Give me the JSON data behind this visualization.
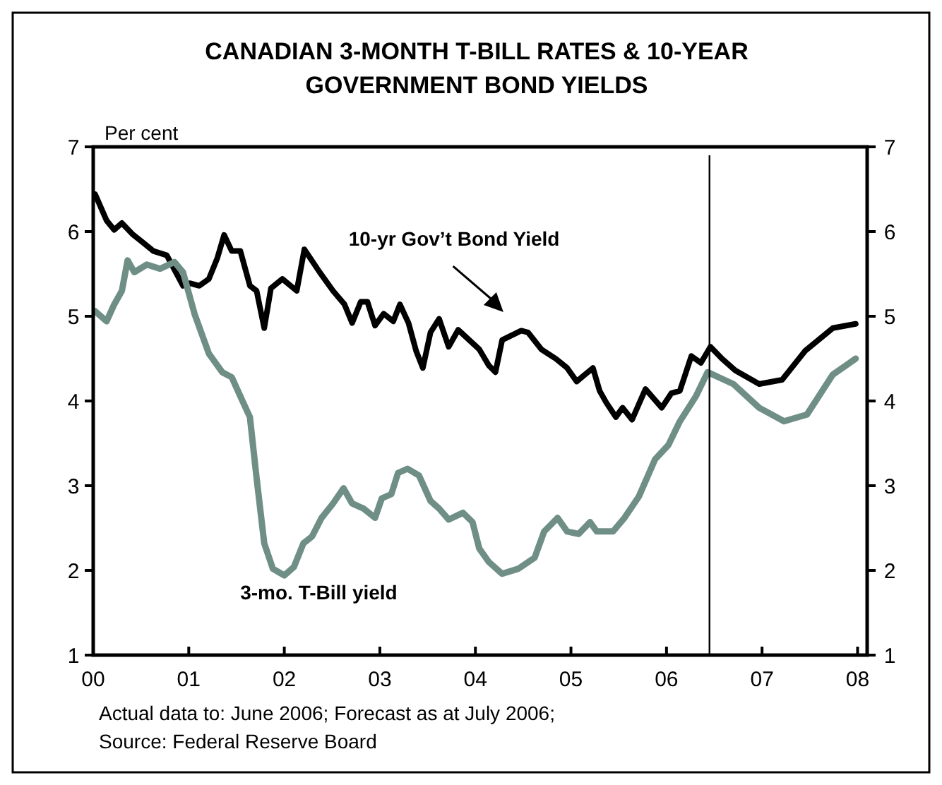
{
  "chart_data": {
    "type": "line",
    "title": "CANADIAN 3-MONTH T-BILL RATES & 10-YEAR GOVERNMENT BOND YIELDS",
    "ylabel": "Per cent",
    "xlim": [
      2000,
      2008.1
    ],
    "xticks": [
      {
        "value": 2000,
        "label": "00"
      },
      {
        "value": 2001,
        "label": "01"
      },
      {
        "value": 2002,
        "label": "02"
      },
      {
        "value": 2003,
        "label": "03"
      },
      {
        "value": 2004,
        "label": "04"
      },
      {
        "value": 2005,
        "label": "05"
      },
      {
        "value": 2006,
        "label": "06"
      },
      {
        "value": 2007,
        "label": "07"
      },
      {
        "value": 2008,
        "label": "08"
      }
    ],
    "ylim": [
      1,
      7
    ],
    "yticks": [
      1,
      2,
      3,
      4,
      5,
      6,
      7
    ],
    "y2lim": [
      1,
      7
    ],
    "y2ticks": [
      1,
      2,
      3,
      4,
      5,
      6,
      7
    ],
    "grid": false,
    "legend": false,
    "marker": "none",
    "line_style": "solid",
    "ref_lines": [
      {
        "axis": "x",
        "value": 2006.45,
        "color": "#000000"
      }
    ],
    "annotations": [
      "Actual data to: June 2006; Forecast as at July 2006;",
      "Source: Federal Reserve Board"
    ],
    "series": [
      {
        "name": "10-yr Gov’t Bond Yield",
        "color": "#000000",
        "x": [
          2000.02,
          2000.14,
          2000.22,
          2000.3,
          2000.41,
          2000.51,
          2000.63,
          2000.77,
          2000.94,
          2001.01,
          2001.11,
          2001.21,
          2001.3,
          2001.37,
          2001.45,
          2001.54,
          2001.64,
          2001.71,
          2001.79,
          2001.86,
          2001.98,
          2002.13,
          2002.21,
          2002.37,
          2002.51,
          2002.63,
          2002.71,
          2002.8,
          2002.87,
          2002.95,
          2003.04,
          2003.14,
          2003.21,
          2003.3,
          2003.38,
          2003.45,
          2003.53,
          2003.62,
          2003.72,
          2003.82,
          2004.04,
          2004.14,
          2004.21,
          2004.28,
          2004.48,
          2004.55,
          2004.69,
          2004.84,
          2004.96,
          2005.06,
          2005.23,
          2005.3,
          2005.37,
          2005.47,
          2005.54,
          2005.64,
          2005.78,
          2005.95,
          2006.05,
          2006.14,
          2006.26,
          2006.36,
          2006.46,
          2006.58,
          2006.72,
          2006.97,
          2007.21,
          2007.45,
          2007.74,
          2007.98
        ],
        "values": [
          6.44,
          6.13,
          6.02,
          6.1,
          5.97,
          5.88,
          5.77,
          5.72,
          5.36,
          5.39,
          5.36,
          5.44,
          5.69,
          5.96,
          5.77,
          5.77,
          5.36,
          5.3,
          4.86,
          5.33,
          5.44,
          5.3,
          5.79,
          5.52,
          5.3,
          5.14,
          4.92,
          5.17,
          5.17,
          4.89,
          5.03,
          4.94,
          5.14,
          4.92,
          4.59,
          4.39,
          4.81,
          4.97,
          4.64,
          4.84,
          4.61,
          4.42,
          4.34,
          4.72,
          4.83,
          4.81,
          4.61,
          4.5,
          4.39,
          4.23,
          4.39,
          4.12,
          3.98,
          3.81,
          3.92,
          3.78,
          4.14,
          3.92,
          4.09,
          4.12,
          4.53,
          4.45,
          4.64,
          4.5,
          4.36,
          4.2,
          4.25,
          4.59,
          4.86,
          4.91
        ]
      },
      {
        "name": "3-mo. T-Bill yield",
        "color": "#6f8f86",
        "x": [
          2000.02,
          2000.14,
          2000.22,
          2000.3,
          2000.36,
          2000.43,
          2000.56,
          2000.7,
          2000.85,
          2000.94,
          2001.06,
          2001.21,
          2001.35,
          2001.45,
          2001.55,
          2001.64,
          2001.71,
          2001.79,
          2001.88,
          2002.0,
          2002.1,
          2002.2,
          2002.29,
          2002.39,
          2002.51,
          2002.62,
          2002.71,
          2002.83,
          2002.95,
          2003.02,
          2003.12,
          2003.19,
          2003.29,
          2003.41,
          2003.53,
          2003.62,
          2003.72,
          2003.87,
          2003.97,
          2004.04,
          2004.14,
          2004.28,
          2004.45,
          2004.62,
          2004.72,
          2004.86,
          2004.96,
          2005.08,
          2005.2,
          2005.27,
          2005.44,
          2005.56,
          2005.71,
          2005.88,
          2006.02,
          2006.14,
          2006.31,
          2006.43,
          2006.7,
          2006.97,
          2007.23,
          2007.47,
          2007.74,
          2007.98
        ],
        "values": [
          5.06,
          4.94,
          5.14,
          5.3,
          5.66,
          5.52,
          5.61,
          5.56,
          5.64,
          5.52,
          5.03,
          4.56,
          4.34,
          4.28,
          4.03,
          3.81,
          3.09,
          2.32,
          2.02,
          1.94,
          2.04,
          2.32,
          2.4,
          2.62,
          2.79,
          2.97,
          2.79,
          2.73,
          2.62,
          2.85,
          2.9,
          3.15,
          3.2,
          3.12,
          2.82,
          2.73,
          2.6,
          2.68,
          2.57,
          2.26,
          2.1,
          1.96,
          2.02,
          2.15,
          2.46,
          2.62,
          2.46,
          2.43,
          2.57,
          2.46,
          2.46,
          2.62,
          2.87,
          3.31,
          3.48,
          3.76,
          4.06,
          4.34,
          4.2,
          3.92,
          3.76,
          3.84,
          4.31,
          4.5
        ]
      }
    ]
  }
}
